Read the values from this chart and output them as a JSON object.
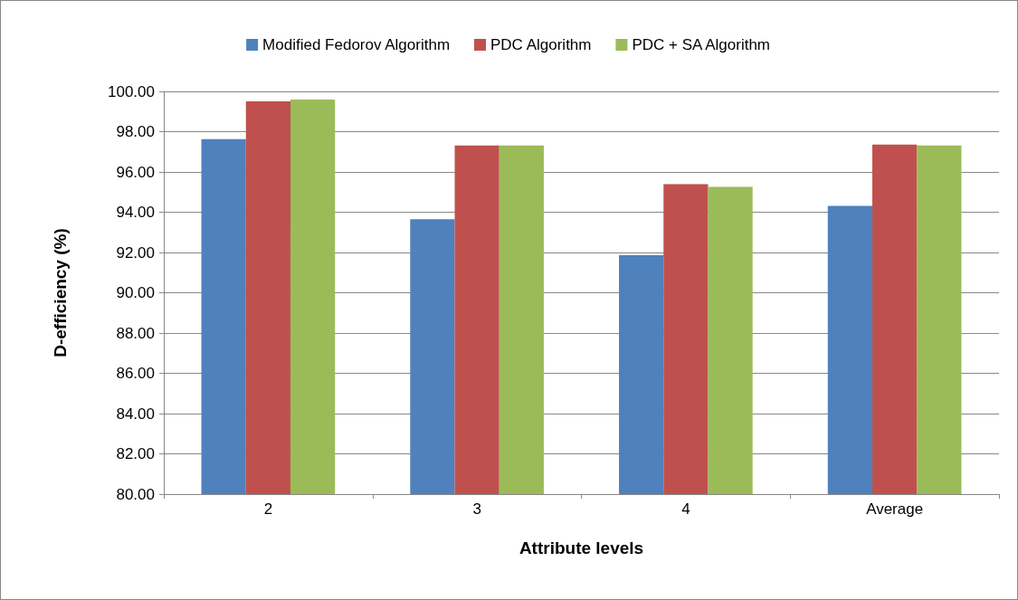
{
  "chart_data": {
    "type": "bar",
    "xlabel": "Attribute levels",
    "ylabel": "D-efficiency (%)",
    "categories": [
      "2",
      "3",
      "4",
      "Average"
    ],
    "series": [
      {
        "name": "Modified Fedorov Algorithm",
        "color": "#4f81bd",
        "values": [
          97.63,
          93.65,
          91.86,
          94.32
        ]
      },
      {
        "name": "PDC Algorithm",
        "color": "#c0504d",
        "values": [
          99.51,
          97.32,
          95.39,
          97.36
        ]
      },
      {
        "name": "PDC + SA Algorithm",
        "color": "#9bbb59",
        "values": [
          99.6,
          97.32,
          95.26,
          97.32
        ]
      }
    ],
    "ylim": [
      80,
      100
    ],
    "yticks": [
      {
        "value": 80,
        "label": "80.00"
      },
      {
        "value": 82,
        "label": "82.00"
      },
      {
        "value": 84,
        "label": "84.00"
      },
      {
        "value": 86,
        "label": "86.00"
      },
      {
        "value": 88,
        "label": "88.00"
      },
      {
        "value": 90,
        "label": "90.00"
      },
      {
        "value": 92,
        "label": "92.00"
      },
      {
        "value": 94,
        "label": "94.00"
      },
      {
        "value": 96,
        "label": "96.00"
      },
      {
        "value": 98,
        "label": "98.00"
      },
      {
        "value": 100,
        "label": "100.00"
      }
    ],
    "grid": "y",
    "legend": "top"
  }
}
